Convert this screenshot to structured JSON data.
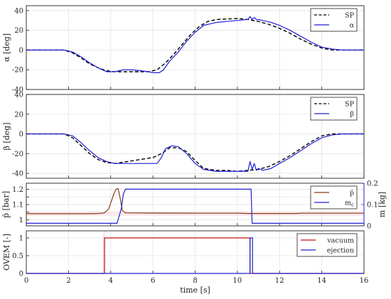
{
  "figure": {
    "xlabel": "time [s]",
    "xlim": [
      0,
      16
    ],
    "xticks": [
      0,
      2,
      4,
      6,
      8,
      10,
      12,
      14,
      16
    ]
  },
  "chart_data": [
    {
      "type": "line",
      "ylabel": "α [deg]",
      "ylim": [
        -40,
        45
      ],
      "yticks": [
        -40,
        -20,
        0,
        20,
        40
      ],
      "grid": true,
      "legend_position": "top-right",
      "series": [
        {
          "name": "SP",
          "style": "dashed",
          "color": "#000000",
          "x": [
            0,
            1.8,
            2.2,
            2.6,
            3.0,
            3.4,
            3.8,
            4.2,
            4.6,
            5.0,
            5.4,
            5.8,
            6.2,
            6.6,
            7.0,
            7.4,
            7.8,
            8.2,
            8.6,
            9.0,
            9.5,
            10.0,
            10.5,
            11.0,
            11.5,
            12.0,
            12.5,
            13.0,
            13.5,
            14.0,
            14.5,
            15.0,
            16.0
          ],
          "y": [
            0,
            0,
            -3,
            -8,
            -14,
            -18,
            -21,
            -22,
            -22,
            -22,
            -22,
            -22,
            -20,
            -13,
            -4,
            6,
            16,
            24,
            29,
            31,
            31.5,
            32,
            31,
            29,
            26,
            22,
            17,
            11,
            6,
            2,
            0,
            0,
            0
          ]
        },
        {
          "name": "α",
          "style": "solid",
          "color": "#1f1fd6",
          "x": [
            0,
            1.8,
            2.2,
            2.6,
            3.0,
            3.4,
            3.8,
            4.2,
            4.4,
            4.6,
            5.0,
            5.4,
            5.8,
            6.0,
            6.3,
            6.5,
            6.8,
            7.2,
            7.6,
            8.0,
            8.4,
            9.0,
            9.5,
            10.0,
            10.5,
            10.6,
            10.7,
            10.8,
            10.9,
            11.0,
            11.2,
            11.6,
            12.0,
            12.5,
            13.0,
            13.5,
            14.0,
            14.5,
            15.0,
            16.0
          ],
          "y": [
            0,
            0,
            -2,
            -7,
            -13,
            -18,
            -22,
            -22,
            -21,
            -20,
            -20,
            -21,
            -22,
            -23,
            -23,
            -20,
            -11,
            -2,
            9,
            18,
            25,
            28,
            29,
            30,
            31,
            34,
            31,
            33,
            31,
            31,
            30,
            28,
            25,
            20,
            14,
            8,
            3,
            1,
            0,
            0
          ]
        }
      ]
    },
    {
      "type": "line",
      "ylabel": "β [deg]",
      "ylim": [
        -45,
        40
      ],
      "yticks": [
        -40,
        -20,
        0,
        20,
        40
      ],
      "grid": true,
      "legend_position": "top-right",
      "series": [
        {
          "name": "SP",
          "style": "dashed",
          "color": "#000000",
          "x": [
            0,
            1.8,
            2.2,
            2.6,
            3.0,
            3.4,
            3.8,
            4.2,
            4.8,
            5.4,
            6.0,
            6.4,
            6.8,
            7.2,
            7.6,
            8.0,
            8.4,
            9.0,
            9.5,
            10.0,
            10.5,
            11.0,
            11.5,
            12.0,
            12.5,
            13.0,
            13.5,
            14.0,
            14.5,
            15.0,
            16.0
          ],
          "y": [
            0,
            0,
            -4,
            -12,
            -20,
            -26,
            -29,
            -30,
            -28,
            -26,
            -24,
            -20,
            -14,
            -14,
            -18,
            -27,
            -35,
            -37,
            -37,
            -38,
            -37,
            -36,
            -33,
            -28,
            -22,
            -15,
            -8,
            -2,
            0,
            0,
            0
          ]
        },
        {
          "name": "β",
          "style": "solid",
          "color": "#1f1fd6",
          "x": [
            0,
            1.8,
            2.2,
            2.6,
            3.0,
            3.4,
            3.8,
            4.2,
            4.8,
            5.4,
            5.8,
            6.2,
            6.4,
            6.6,
            6.9,
            7.2,
            7.6,
            8.0,
            8.4,
            9.0,
            9.5,
            10.0,
            10.5,
            10.6,
            10.7,
            10.8,
            10.9,
            11.0,
            11.2,
            11.6,
            12.0,
            12.5,
            13.0,
            13.5,
            14.0,
            14.5,
            15.0,
            16.0
          ],
          "y": [
            0,
            0,
            -2,
            -9,
            -17,
            -24,
            -28,
            -30,
            -30,
            -30,
            -30,
            -30,
            -24,
            -15,
            -12,
            -13,
            -20,
            -30,
            -36,
            -38,
            -38,
            -38,
            -38,
            -28,
            -36,
            -30,
            -37,
            -35,
            -37,
            -35,
            -30,
            -24,
            -17,
            -10,
            -4,
            -1,
            0,
            0
          ]
        }
      ]
    },
    {
      "type": "line",
      "ylabel": "p̄ [bar]",
      "ylim": [
        0.96,
        1.24
      ],
      "yticks": [
        1,
        1.05,
        1.1,
        1.15,
        1.2
      ],
      "ytick_labels": [
        "1",
        "",
        "1.1",
        "",
        "1.2"
      ],
      "y2label": "m [kg]",
      "y2lim": [
        0,
        0.2
      ],
      "y2ticks": [
        0,
        0.1,
        0.2
      ],
      "grid": true,
      "legend_position": "top-right",
      "series": [
        {
          "name": "p̄",
          "axis": "left",
          "style": "solid",
          "color": "#8b3a1a",
          "x": [
            0,
            3.0,
            3.4,
            3.7,
            3.9,
            4.0,
            4.15,
            4.25,
            4.35,
            4.45,
            4.55,
            4.7,
            5.0,
            6.0,
            8.0,
            10.0,
            10.5,
            12.8,
            13.0,
            16.0
          ],
          "y": [
            1.04,
            1.04,
            1.041,
            1.045,
            1.07,
            1.11,
            1.17,
            1.2,
            1.205,
            1.14,
            1.06,
            1.045,
            1.045,
            1.044,
            1.043,
            1.043,
            1.041,
            1.041,
            1.043,
            1.043
          ]
        },
        {
          "name": "m_c",
          "axis": "right",
          "style": "solid",
          "color": "#1f1fd6",
          "x": [
            0,
            4.3,
            4.5,
            4.6,
            4.7,
            10.65,
            10.7,
            16.0
          ],
          "y": [
            0.012,
            0.012,
            0.08,
            0.15,
            0.172,
            0.172,
            0.012,
            0.012
          ]
        }
      ]
    },
    {
      "type": "line",
      "ylabel": "OVEM [-]",
      "ylim": [
        0,
        1.2
      ],
      "yticks": [
        0,
        0.5,
        1
      ],
      "grid": true,
      "legend_position": "top-right",
      "series": [
        {
          "name": "vacuum",
          "style": "solid",
          "color": "#c0140c",
          "x": [
            0,
            3.7,
            3.7,
            10.6,
            10.6,
            16.0
          ],
          "y": [
            0,
            0,
            1,
            1,
            0,
            0
          ]
        },
        {
          "name": "ejection",
          "style": "solid",
          "color": "#1f1fd6",
          "x": [
            0,
            10.6,
            10.6,
            10.72,
            10.72,
            16.0
          ],
          "y": [
            0,
            0,
            1,
            1,
            0,
            0
          ]
        }
      ]
    }
  ]
}
